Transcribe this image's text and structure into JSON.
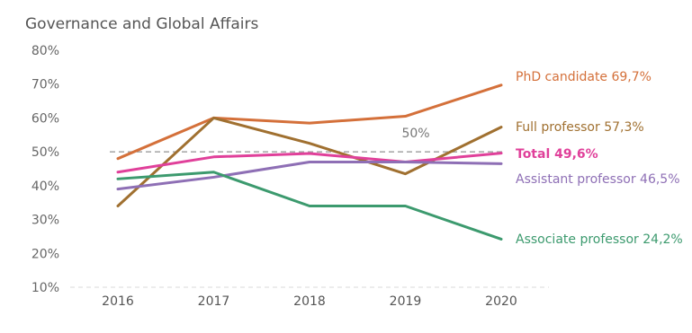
{
  "chart_data": {
    "type": "line",
    "title": "Governance and Global Affairs",
    "xlabel": "",
    "ylabel": "",
    "x": [
      "2016",
      "2017",
      "2018",
      "2019",
      "2020"
    ],
    "ylim": [
      10,
      80
    ],
    "yticks": [
      "10%",
      "20%",
      "30%",
      "40%",
      "50%",
      "60%",
      "70%",
      "80%"
    ],
    "grid": false,
    "reference_line": {
      "value": 50,
      "label": "50%"
    },
    "series": [
      {
        "name": "PhD candidate",
        "values": [
          48,
          60,
          58.5,
          60.5,
          69.7
        ],
        "label": "PhD candidate 69,7%",
        "color": "#D4703A",
        "bold": false
      },
      {
        "name": "Full professor",
        "values": [
          34,
          60,
          52.5,
          43.5,
          57.3
        ],
        "label": "Full professor 57,3%",
        "color": "#A07030",
        "bold": false
      },
      {
        "name": "Total",
        "values": [
          44,
          48.5,
          49.5,
          47,
          49.6
        ],
        "label": "Total 49,6%",
        "color": "#E0409A",
        "bold": true
      },
      {
        "name": "Assistant professor",
        "values": [
          39,
          42.5,
          47,
          47,
          46.5
        ],
        "label": "Assistant professor 46,5%",
        "color": "#8E6FB5",
        "bold": false
      },
      {
        "name": "Associate professor",
        "values": [
          42,
          44,
          34,
          34,
          24.2
        ],
        "label": "Associate professor 24,2%",
        "color": "#3C9A6E",
        "bold": false
      }
    ]
  }
}
